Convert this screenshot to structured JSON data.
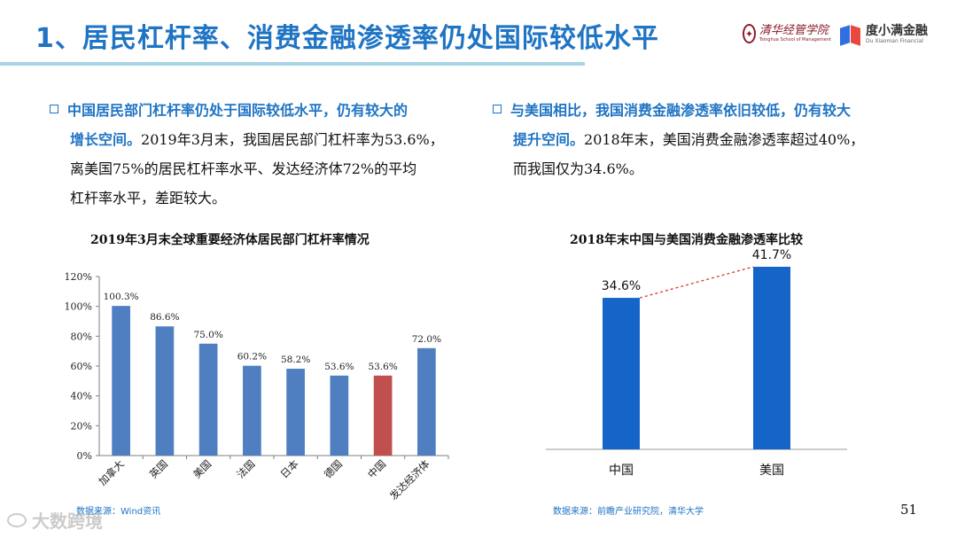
{
  "slide": {
    "title": "1、居民杠杆率、消费金融渗透率仍处国际较低水平",
    "page_number": "51",
    "watermark": "大数跨境",
    "logos": {
      "tsinghua_cn": "清华经管学院",
      "tsinghua_en": "Tsinghua School of Management",
      "duxiaoman_cn": "度小满金融",
      "duxiaoman_en": "Du Xiaoman Financial"
    }
  },
  "left_bullet": {
    "highlight_line1": "中国居民部门杠杆率仍处于国际较低水平，仍有较大的",
    "highlight_line2": "增长空间。",
    "text_line2": "2019年3月末，我国居民部门杠杆率为53.6%，",
    "text_line3": "离美国75%的居民杠杆率水平、发达经济体72%的平均",
    "text_line4": "杠杆率水平，差距较大。"
  },
  "right_bullet": {
    "highlight_line1": "与美国相比，我国消费金融渗透率依旧较低，仍有较大",
    "highlight_line2": "提升空间。",
    "text_line2": "2018年末，美国消费金融渗透率超过40%，",
    "text_line3": "而我国仅为34.6%。"
  },
  "sources": {
    "left": "数据来源：Wind资讯",
    "right": "数据来源：前瞻产业研究院，清华大学"
  },
  "colors": {
    "accent": "#1f74c4",
    "bar_blue": "#4f7fc0",
    "bar_red": "#c0504d",
    "bar2_blue": "#1565c8",
    "dashed_line": "#d93a2b"
  },
  "chart_data": [
    {
      "type": "bar",
      "title": "2019年3月末全球重要经济体居民部门杠杆率情况",
      "categories": [
        "加拿大",
        "英国",
        "美国",
        "法国",
        "日本",
        "德国",
        "中国",
        "发达经济体"
      ],
      "values": [
        100.3,
        86.6,
        75.0,
        60.2,
        58.2,
        53.6,
        53.6,
        72.0
      ],
      "data_labels": [
        "100.3%",
        "86.6%",
        "75.0%",
        "60.2%",
        "58.2%",
        "53.6%",
        "53.6%",
        "72.0%"
      ],
      "highlight_category": "中国",
      "yticks": [
        "0%",
        "20%",
        "40%",
        "60%",
        "80%",
        "100%",
        "120%"
      ],
      "ylim": [
        0,
        120
      ],
      "grid": false,
      "legend": "none"
    },
    {
      "type": "bar",
      "title": "2018年末中国与美国消费金融渗透率比较",
      "categories": [
        "中国",
        "美国"
      ],
      "values": [
        34.6,
        41.7
      ],
      "data_labels": [
        "34.6%",
        "41.7%"
      ],
      "annotation": "dashed line connecting the tops of the two bars",
      "grid": false,
      "legend": "none"
    }
  ]
}
